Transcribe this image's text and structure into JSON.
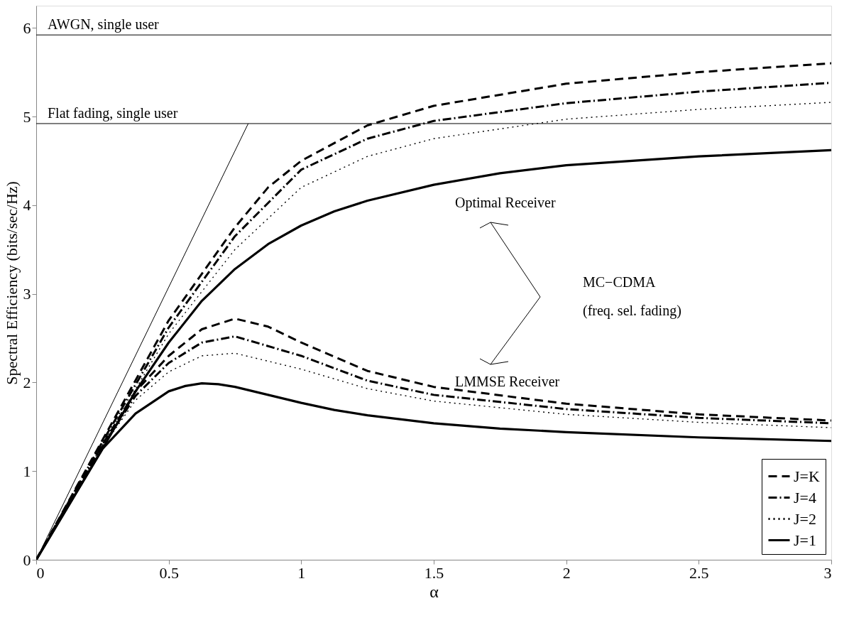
{
  "chart_data": {
    "type": "line",
    "xlabel": "α",
    "ylabel": "Spectral Efficiency (bits/sec/Hz)",
    "xlim": [
      0,
      3
    ],
    "ylim": [
      0,
      6.25
    ],
    "xticks": [
      0,
      0.5,
      1,
      1.5,
      2,
      2.5,
      3
    ],
    "yticks": [
      0,
      1,
      2,
      3,
      4,
      5,
      6
    ],
    "grid": false,
    "legend": "bottom right",
    "ref_lines": [
      {
        "axis": "y",
        "value": 5.92,
        "label": "AWGN, single user",
        "color": "#000000"
      },
      {
        "axis": "y",
        "value": 4.92,
        "label": "Flat fading, single user",
        "color": "#000000"
      }
    ],
    "annotations": [
      "Optimal Receiver",
      "MC−CDMA",
      "(freq. sel. fading)",
      "LMMSE Receiver"
    ],
    "series": [
      {
        "name": "J=K",
        "color": "#000000",
        "line_style": "dashed",
        "x": [
          0,
          0.25,
          0.5,
          0.75,
          0.875,
          1,
          1.25,
          1.5,
          2,
          2.5,
          3
        ],
        "values": [
          0,
          1.35,
          2.7,
          3.75,
          4.2,
          4.5,
          4.9,
          5.12,
          5.37,
          5.5,
          5.6
        ]
      },
      {
        "name": "J=4",
        "color": "#000000",
        "line_style": "dashdot",
        "x": [
          0,
          0.25,
          0.5,
          0.75,
          1,
          1.25,
          1.5,
          2,
          2.5,
          3
        ],
        "values": [
          0,
          1.33,
          2.62,
          3.65,
          4.4,
          4.75,
          4.95,
          5.15,
          5.28,
          5.38
        ]
      },
      {
        "name": "J=2",
        "color": "#000000",
        "line_style": "dotted",
        "x": [
          0,
          0.25,
          0.5,
          0.75,
          1,
          1.25,
          1.5,
          2,
          2.5,
          3
        ],
        "values": [
          0,
          1.3,
          2.55,
          3.5,
          4.2,
          4.55,
          4.75,
          4.97,
          5.08,
          5.16
        ]
      },
      {
        "name": "J=1",
        "color": "#000000",
        "line_style": "solid",
        "x": [
          0,
          0.25,
          0.375,
          0.5,
          0.625,
          0.75,
          0.875,
          1,
          1.125,
          1.25,
          1.5,
          1.75,
          2,
          2.5,
          3
        ],
        "values": [
          0,
          1.25,
          1.9,
          2.45,
          2.92,
          3.28,
          3.56,
          3.77,
          3.93,
          4.05,
          4.23,
          4.36,
          4.45,
          4.55,
          4.62
        ]
      },
      {
        "color": "#000000",
        "line_style": "dashed",
        "x": [
          0,
          0.25,
          0.375,
          0.5,
          0.625,
          0.75,
          0.875,
          1,
          1.25,
          1.5,
          2,
          2.5,
          3
        ],
        "values": [
          0,
          1.3,
          1.9,
          2.3,
          2.6,
          2.72,
          2.63,
          2.45,
          2.13,
          1.95,
          1.76,
          1.64,
          1.57
        ]
      },
      {
        "color": "#000000",
        "line_style": "dashdot",
        "x": [
          0,
          0.25,
          0.375,
          0.5,
          0.625,
          0.75,
          1,
          1.25,
          1.5,
          2,
          2.5,
          3
        ],
        "values": [
          0,
          1.28,
          1.85,
          2.22,
          2.45,
          2.52,
          2.3,
          2.02,
          1.86,
          1.7,
          1.6,
          1.54
        ]
      },
      {
        "color": "#000000",
        "line_style": "dotted",
        "x": [
          0,
          0.25,
          0.375,
          0.5,
          0.625,
          0.75,
          1,
          1.25,
          1.5,
          2,
          2.5,
          3
        ],
        "values": [
          0,
          1.27,
          1.8,
          2.12,
          2.3,
          2.33,
          2.15,
          1.93,
          1.79,
          1.64,
          1.55,
          1.49
        ]
      },
      {
        "color": "#000000",
        "line_style": "solid",
        "x": [
          0,
          0.25,
          0.375,
          0.5,
          0.5625,
          0.625,
          0.6875,
          0.75,
          0.875,
          1,
          1.125,
          1.25,
          1.5,
          1.75,
          2,
          2.5,
          3
        ],
        "values": [
          0,
          1.25,
          1.65,
          1.9,
          1.96,
          1.99,
          1.98,
          1.95,
          1.86,
          1.77,
          1.69,
          1.63,
          1.54,
          1.48,
          1.44,
          1.38,
          1.34
        ]
      },
      {
        "type": "line",
        "color": "#000000",
        "line_style": "solid",
        "x": [
          0,
          0.8
        ],
        "values": [
          0,
          4.92
        ]
      }
    ]
  }
}
